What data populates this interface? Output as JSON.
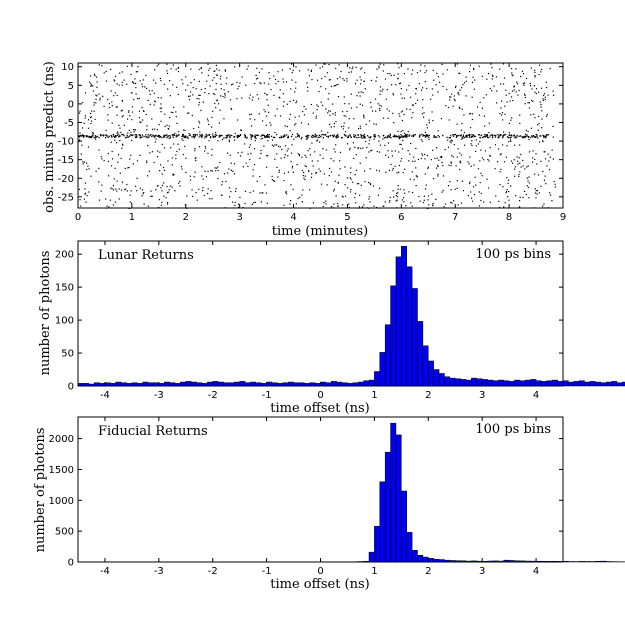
{
  "chart_data": [
    {
      "type": "scatter",
      "xlabel": "time (minutes)",
      "ylabel": "obs. minus predict (ns)",
      "xlim": [
        0,
        9
      ],
      "ylim": [
        -28,
        11
      ],
      "x_ticks": [
        "0",
        "1",
        "2",
        "3",
        "4",
        "5",
        "6",
        "7",
        "8",
        "9"
      ],
      "y_ticks": [
        "10",
        "5",
        "0",
        "-5",
        "-10",
        "-15",
        "-20",
        "-25"
      ],
      "series": [
        {
          "description_values": "uniform background noise points across full window; dense return track",
          "track_y": -8.5,
          "track_x_range": [
            0,
            8.7
          ]
        }
      ]
    },
    {
      "type": "bar",
      "xlabel": "time offset (ns)",
      "ylabel": "number of photons",
      "xlim": [
        -4.5,
        4.5
      ],
      "ylim": [
        0,
        220
      ],
      "x_ticks": [
        "-4",
        "-3",
        "-2",
        "-1",
        "0",
        "1",
        "2",
        "3",
        "4"
      ],
      "y_ticks": [
        "0",
        "50",
        "100",
        "150",
        "200"
      ],
      "annotations": [
        "Lunar Returns",
        "100 ps bins"
      ],
      "bin_width": 0.1,
      "bin_start": -4.5,
      "values": [
        4,
        4,
        3,
        5,
        4,
        5,
        4,
        6,
        5,
        4,
        5,
        4,
        6,
        5,
        5,
        4,
        6,
        5,
        4,
        6,
        7,
        6,
        5,
        4,
        6,
        7,
        6,
        5,
        5,
        6,
        7,
        5,
        6,
        5,
        4,
        6,
        5,
        4,
        5,
        6,
        5,
        5,
        4,
        5,
        4,
        6,
        5,
        7,
        6,
        5,
        4,
        5,
        6,
        8,
        9,
        22,
        51,
        93,
        152,
        196,
        212,
        181,
        148,
        98,
        61,
        38,
        25,
        19,
        14,
        12,
        11,
        10,
        9,
        12,
        11,
        10,
        9,
        8,
        9,
        8,
        7,
        9,
        8,
        9,
        10,
        8,
        7,
        8,
        9,
        7,
        8,
        6,
        7,
        8,
        6,
        7,
        6,
        5,
        6,
        7,
        5,
        6,
        7,
        8,
        9,
        8,
        7,
        10,
        12,
        11,
        8,
        7,
        6,
        7,
        6,
        5,
        6,
        7,
        6,
        8,
        9
      ]
    },
    {
      "type": "bar",
      "xlabel": "time offset (ns)",
      "ylabel": "number of photons",
      "xlim": [
        -4.5,
        4.5
      ],
      "ylim": [
        0,
        2350
      ],
      "x_ticks": [
        "-4",
        "-3",
        "-2",
        "-1",
        "0",
        "1",
        "2",
        "3",
        "4"
      ],
      "y_ticks": [
        "0",
        "500",
        "1000",
        "1500",
        "2000"
      ],
      "annotations": [
        "Fiducial Returns",
        "100 ps bins"
      ],
      "bin_width": 0.1,
      "bin_start": -4.5,
      "values": [
        0,
        0,
        0,
        0,
        0,
        0,
        0,
        0,
        0,
        0,
        0,
        0,
        0,
        0,
        0,
        0,
        0,
        0,
        0,
        0,
        0,
        0,
        0,
        0,
        0,
        0,
        0,
        0,
        0,
        0,
        0,
        0,
        0,
        0,
        0,
        0,
        0,
        0,
        0,
        0,
        0,
        0,
        0,
        0,
        0,
        0,
        0,
        0,
        0,
        0,
        0,
        5,
        8,
        12,
        160,
        580,
        1300,
        1780,
        2250,
        2060,
        1150,
        480,
        190,
        110,
        80,
        60,
        45,
        40,
        30,
        25,
        22,
        20,
        15,
        18,
        14,
        12,
        16,
        18,
        15,
        30,
        25,
        20,
        18,
        15,
        14,
        13,
        12,
        11,
        12,
        10,
        12,
        8,
        7,
        10,
        9,
        8,
        12,
        14,
        8,
        6,
        5,
        4,
        6,
        5,
        4,
        3,
        2,
        3,
        4,
        3,
        2,
        1,
        2,
        1
      ]
    }
  ]
}
